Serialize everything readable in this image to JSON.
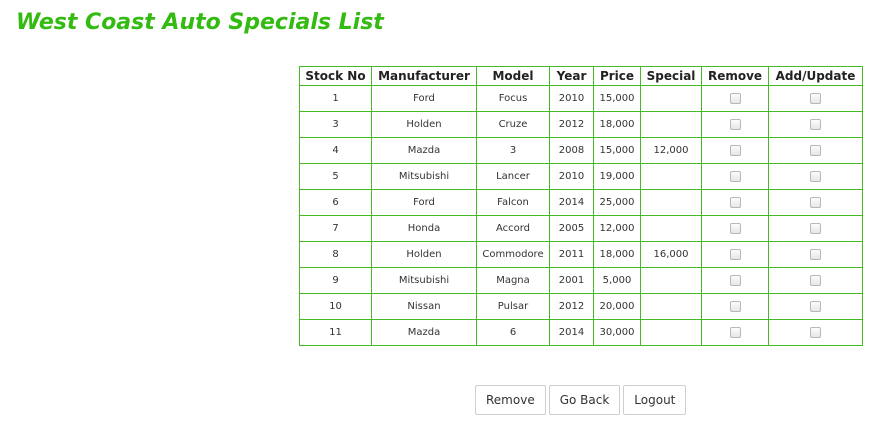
{
  "page": {
    "title": "West Coast Auto Specials List"
  },
  "table": {
    "headers": [
      "Stock No",
      "Manufacturer",
      "Model",
      "Year",
      "Price",
      "Special",
      "Remove",
      "Add/Update"
    ],
    "rows": [
      {
        "stock_no": "1",
        "manufacturer": "Ford",
        "model": "Focus",
        "year": "2010",
        "price": "15,000",
        "special": ""
      },
      {
        "stock_no": "3",
        "manufacturer": "Holden",
        "model": "Cruze",
        "year": "2012",
        "price": "18,000",
        "special": ""
      },
      {
        "stock_no": "4",
        "manufacturer": "Mazda",
        "model": "3",
        "year": "2008",
        "price": "15,000",
        "special": "12,000"
      },
      {
        "stock_no": "5",
        "manufacturer": "Mitsubishi",
        "model": "Lancer",
        "year": "2010",
        "price": "19,000",
        "special": ""
      },
      {
        "stock_no": "6",
        "manufacturer": "Ford",
        "model": "Falcon",
        "year": "2014",
        "price": "25,000",
        "special": ""
      },
      {
        "stock_no": "7",
        "manufacturer": "Honda",
        "model": "Accord",
        "year": "2005",
        "price": "12,000",
        "special": ""
      },
      {
        "stock_no": "8",
        "manufacturer": "Holden",
        "model": "Commodore",
        "year": "2011",
        "price": "18,000",
        "special": "16,000"
      },
      {
        "stock_no": "9",
        "manufacturer": "Mitsubishi",
        "model": "Magna",
        "year": "2001",
        "price": "5,000",
        "special": ""
      },
      {
        "stock_no": "10",
        "manufacturer": "Nissan",
        "model": "Pulsar",
        "year": "2012",
        "price": "20,000",
        "special": ""
      },
      {
        "stock_no": "11",
        "manufacturer": "Mazda",
        "model": "6",
        "year": "2014",
        "price": "30,000",
        "special": ""
      }
    ]
  },
  "buttons": {
    "remove": "Remove",
    "go_back": "Go Back",
    "logout": "Logout"
  },
  "colors": {
    "title": "#33bb11",
    "border": "#44bb22"
  }
}
